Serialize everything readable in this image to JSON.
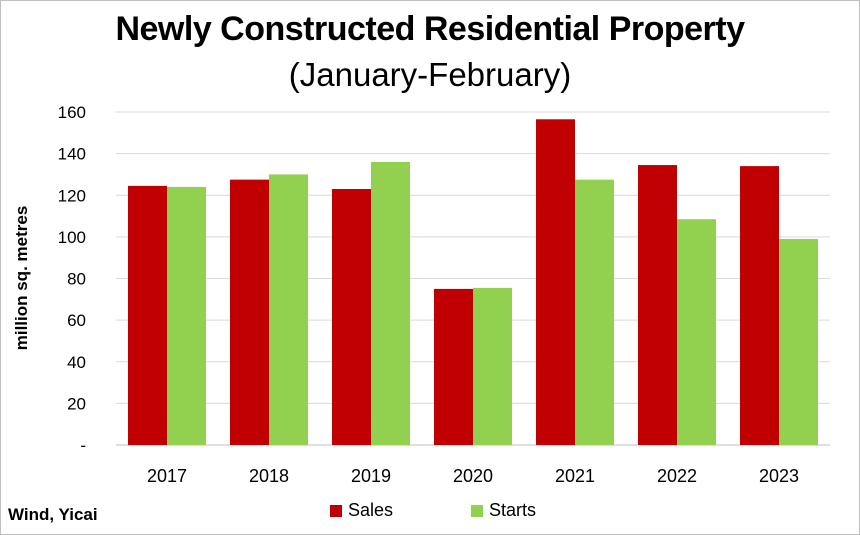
{
  "chart_data": {
    "type": "bar",
    "title": "Newly Constructed Residential Property",
    "subtitle": "(January-February)",
    "ylabel": "million sq. metres",
    "xlabel": "",
    "categories": [
      "2017",
      "2018",
      "2019",
      "2020",
      "2021",
      "2022",
      "2023"
    ],
    "series": [
      {
        "name": "Sales",
        "color": "#c00000",
        "values": [
          124.5,
          127.5,
          123,
          75,
          156.5,
          134.5,
          134
        ]
      },
      {
        "name": "Starts",
        "color": "#92d050",
        "values": [
          124,
          130,
          136,
          75.5,
          127.5,
          108.5,
          99
        ]
      }
    ],
    "ylim": [
      0,
      160
    ],
    "yticks": [
      0,
      20,
      40,
      60,
      80,
      100,
      120,
      140,
      160
    ],
    "ytick_labels": [
      "-",
      "20",
      "40",
      "60",
      "80",
      "100",
      "120",
      "140",
      "160"
    ],
    "grid": true,
    "legend_position": "bottom"
  },
  "source": "Wind, Yicai"
}
